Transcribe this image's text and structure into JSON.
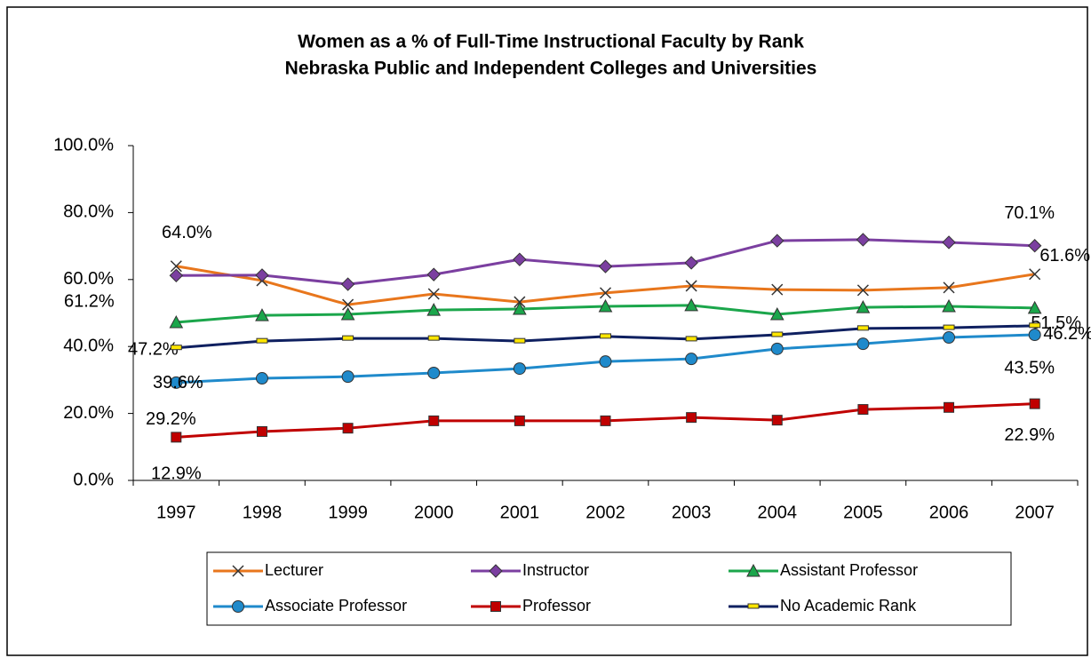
{
  "chart_data": {
    "type": "line",
    "title": "Women as a % of Full-Time Instructional Faculty by Rank",
    "subtitle": "Nebraska Public and Independent Colleges and Universities",
    "categories": [
      "1997",
      "1998",
      "1999",
      "2000",
      "2001",
      "2002",
      "2003",
      "2004",
      "2005",
      "2006",
      "2007"
    ],
    "ylim": [
      0,
      100
    ],
    "yticks": [
      {
        "value": 0,
        "label": "0.0%"
      },
      {
        "value": 20,
        "label": "20.0%"
      },
      {
        "value": 40,
        "label": "40.0%"
      },
      {
        "value": 60,
        "label": "60.0%"
      },
      {
        "value": 80,
        "label": "80.0%"
      },
      {
        "value": 100,
        "label": "100.0%"
      }
    ],
    "grid": false,
    "legend": "bottom",
    "series": [
      {
        "name": "Lecturer",
        "color": "#E8761C",
        "marker": "x",
        "values": [
          64.0,
          59.7,
          52.5,
          55.7,
          53.3,
          56.0,
          58.1,
          57.0,
          56.8,
          57.6,
          61.6
        ],
        "value_labels": [
          "64.0%",
          null,
          null,
          null,
          null,
          null,
          null,
          null,
          null,
          null,
          "61.6%"
        ]
      },
      {
        "name": "Instructor",
        "color": "#7B3FA0",
        "marker": "diamond",
        "values": [
          61.2,
          61.3,
          58.6,
          61.5,
          66.0,
          63.9,
          65.0,
          71.6,
          71.9,
          71.1,
          70.1
        ],
        "value_labels": [
          "61.2%",
          null,
          null,
          null,
          null,
          null,
          null,
          null,
          null,
          null,
          "70.1%"
        ]
      },
      {
        "name": "Assistant Professor",
        "color": "#1BA64B",
        "marker": "triangle",
        "values": [
          47.2,
          49.3,
          49.6,
          50.9,
          51.2,
          52.0,
          52.3,
          49.6,
          51.7,
          52.0,
          51.5
        ],
        "value_labels": [
          "47.2%",
          null,
          null,
          null,
          null,
          null,
          null,
          null,
          null,
          null,
          "51.5%"
        ]
      },
      {
        "name": "Associate Professor",
        "color": "#1F8ACB",
        "marker": "circle",
        "values": [
          29.2,
          30.5,
          31.0,
          32.1,
          33.4,
          35.5,
          36.3,
          39.3,
          40.8,
          42.7,
          43.5
        ],
        "value_labels": [
          "29.2%",
          null,
          null,
          null,
          null,
          null,
          null,
          null,
          null,
          null,
          "43.5%"
        ]
      },
      {
        "name": "Professor",
        "color": "#C00000",
        "marker": "square",
        "values": [
          12.9,
          14.6,
          15.6,
          17.8,
          17.8,
          17.8,
          18.8,
          18.0,
          21.2,
          21.8,
          22.9
        ],
        "value_labels": [
          "12.9%",
          null,
          null,
          null,
          null,
          null,
          null,
          null,
          null,
          null,
          "22.9%"
        ]
      },
      {
        "name": "No Academic Rank",
        "color": "#0F2060",
        "marker": "dash",
        "values": [
          39.6,
          41.6,
          42.4,
          42.4,
          41.6,
          43.0,
          42.2,
          43.5,
          45.4,
          45.6,
          46.2
        ],
        "value_labels": [
          "39.6%",
          null,
          null,
          null,
          null,
          null,
          null,
          null,
          null,
          null,
          "46.2%"
        ]
      }
    ]
  }
}
